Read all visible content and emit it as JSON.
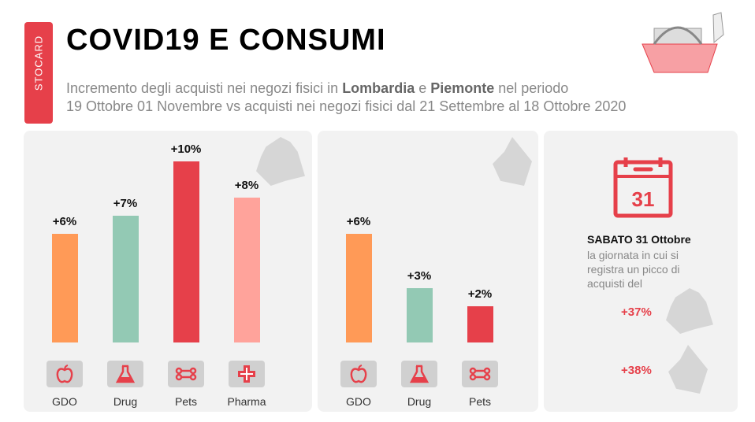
{
  "brand": "STOCARD",
  "title": "COVID19 E CONSUMI",
  "subtitle": {
    "p1": "Incremento degli acquisti nei negozi fisici in ",
    "r1": "Lombardia",
    "p2": " e ",
    "r2": "Piemonte",
    "p3": " nel periodo",
    "line2": "19 Ottobre 01 Novembre vs acquisti nei negozi fisici dal 21 Settembre al 18 Ottobre 2020"
  },
  "chart_data": [
    {
      "type": "bar",
      "region": "Lombardia",
      "categories": [
        "GDO",
        "Drug",
        "Pets",
        "Pharma"
      ],
      "values": [
        6,
        7,
        10,
        8
      ],
      "labels": [
        "+6%",
        "+7%",
        "+10%",
        "+8%"
      ],
      "colors": [
        "#FF9A57",
        "#93C9B4",
        "#E6404A",
        "#FFA39B"
      ],
      "icons": [
        "apple-icon",
        "flask-icon",
        "bone-icon",
        "cross-icon"
      ]
    },
    {
      "type": "bar",
      "region": "Piemonte",
      "categories": [
        "GDO",
        "Drug",
        "Pets"
      ],
      "values": [
        6,
        3,
        2
      ],
      "labels": [
        "+6%",
        "+3%",
        "+2%"
      ],
      "colors": [
        "#FF9A57",
        "#93C9B4",
        "#E6404A"
      ],
      "icons": [
        "apple-icon",
        "flask-icon",
        "bone-icon"
      ]
    }
  ],
  "peak": {
    "day": "31",
    "heading": "SABATO 31 Ottobre",
    "text": "la giornata in cui si registra un picco di acquisti del",
    "lombardia": "+37%",
    "piemonte": "+38%"
  },
  "colors": {
    "accent": "#E6404A",
    "panel": "#F2F2F2"
  }
}
